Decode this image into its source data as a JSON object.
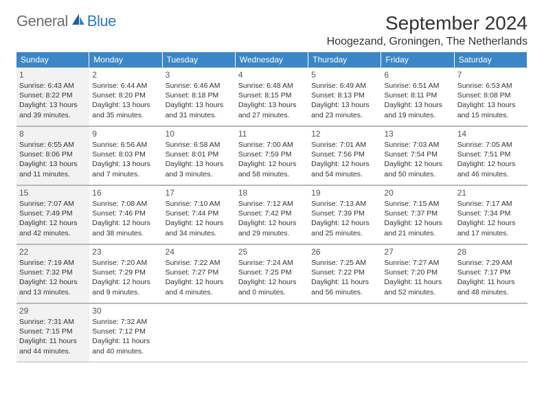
{
  "brand": {
    "part1": "General",
    "part2": "Blue"
  },
  "title": "September 2024",
  "location": "Hoogezand, Groningen, The Netherlands",
  "colors": {
    "header_bg": "#3b86c6",
    "header_text": "#ffffff",
    "shaded_bg": "#f2f2f2",
    "border": "#b8b8b8",
    "text": "#333333",
    "logo_gray": "#6d6e71",
    "logo_blue": "#2f7bbf"
  },
  "dow": [
    "Sunday",
    "Monday",
    "Tuesday",
    "Wednesday",
    "Thursday",
    "Friday",
    "Saturday"
  ],
  "shaded_days": [
    1,
    8,
    15,
    22,
    29
  ],
  "days": [
    {
      "n": 1,
      "sr": "6:43 AM",
      "ss": "8:22 PM",
      "dl": "13 hours and 39 minutes."
    },
    {
      "n": 2,
      "sr": "6:44 AM",
      "ss": "8:20 PM",
      "dl": "13 hours and 35 minutes."
    },
    {
      "n": 3,
      "sr": "6:46 AM",
      "ss": "8:18 PM",
      "dl": "13 hours and 31 minutes."
    },
    {
      "n": 4,
      "sr": "6:48 AM",
      "ss": "8:15 PM",
      "dl": "13 hours and 27 minutes."
    },
    {
      "n": 5,
      "sr": "6:49 AM",
      "ss": "8:13 PM",
      "dl": "13 hours and 23 minutes."
    },
    {
      "n": 6,
      "sr": "6:51 AM",
      "ss": "8:11 PM",
      "dl": "13 hours and 19 minutes."
    },
    {
      "n": 7,
      "sr": "6:53 AM",
      "ss": "8:08 PM",
      "dl": "13 hours and 15 minutes."
    },
    {
      "n": 8,
      "sr": "6:55 AM",
      "ss": "8:06 PM",
      "dl": "13 hours and 11 minutes."
    },
    {
      "n": 9,
      "sr": "6:56 AM",
      "ss": "8:03 PM",
      "dl": "13 hours and 7 minutes."
    },
    {
      "n": 10,
      "sr": "6:58 AM",
      "ss": "8:01 PM",
      "dl": "13 hours and 3 minutes."
    },
    {
      "n": 11,
      "sr": "7:00 AM",
      "ss": "7:59 PM",
      "dl": "12 hours and 58 minutes."
    },
    {
      "n": 12,
      "sr": "7:01 AM",
      "ss": "7:56 PM",
      "dl": "12 hours and 54 minutes."
    },
    {
      "n": 13,
      "sr": "7:03 AM",
      "ss": "7:54 PM",
      "dl": "12 hours and 50 minutes."
    },
    {
      "n": 14,
      "sr": "7:05 AM",
      "ss": "7:51 PM",
      "dl": "12 hours and 46 minutes."
    },
    {
      "n": 15,
      "sr": "7:07 AM",
      "ss": "7:49 PM",
      "dl": "12 hours and 42 minutes."
    },
    {
      "n": 16,
      "sr": "7:08 AM",
      "ss": "7:46 PM",
      "dl": "12 hours and 38 minutes."
    },
    {
      "n": 17,
      "sr": "7:10 AM",
      "ss": "7:44 PM",
      "dl": "12 hours and 34 minutes."
    },
    {
      "n": 18,
      "sr": "7:12 AM",
      "ss": "7:42 PM",
      "dl": "12 hours and 29 minutes."
    },
    {
      "n": 19,
      "sr": "7:13 AM",
      "ss": "7:39 PM",
      "dl": "12 hours and 25 minutes."
    },
    {
      "n": 20,
      "sr": "7:15 AM",
      "ss": "7:37 PM",
      "dl": "12 hours and 21 minutes."
    },
    {
      "n": 21,
      "sr": "7:17 AM",
      "ss": "7:34 PM",
      "dl": "12 hours and 17 minutes."
    },
    {
      "n": 22,
      "sr": "7:19 AM",
      "ss": "7:32 PM",
      "dl": "12 hours and 13 minutes."
    },
    {
      "n": 23,
      "sr": "7:20 AM",
      "ss": "7:29 PM",
      "dl": "12 hours and 9 minutes."
    },
    {
      "n": 24,
      "sr": "7:22 AM",
      "ss": "7:27 PM",
      "dl": "12 hours and 4 minutes."
    },
    {
      "n": 25,
      "sr": "7:24 AM",
      "ss": "7:25 PM",
      "dl": "12 hours and 0 minutes."
    },
    {
      "n": 26,
      "sr": "7:25 AM",
      "ss": "7:22 PM",
      "dl": "11 hours and 56 minutes."
    },
    {
      "n": 27,
      "sr": "7:27 AM",
      "ss": "7:20 PM",
      "dl": "11 hours and 52 minutes."
    },
    {
      "n": 28,
      "sr": "7:29 AM",
      "ss": "7:17 PM",
      "dl": "11 hours and 48 minutes."
    },
    {
      "n": 29,
      "sr": "7:31 AM",
      "ss": "7:15 PM",
      "dl": "11 hours and 44 minutes."
    },
    {
      "n": 30,
      "sr": "7:32 AM",
      "ss": "7:12 PM",
      "dl": "11 hours and 40 minutes."
    }
  ],
  "labels": {
    "sunrise": "Sunrise:",
    "sunset": "Sunset:",
    "daylight": "Daylight:"
  },
  "trailing_empty": 5,
  "start_dow_index": 0
}
